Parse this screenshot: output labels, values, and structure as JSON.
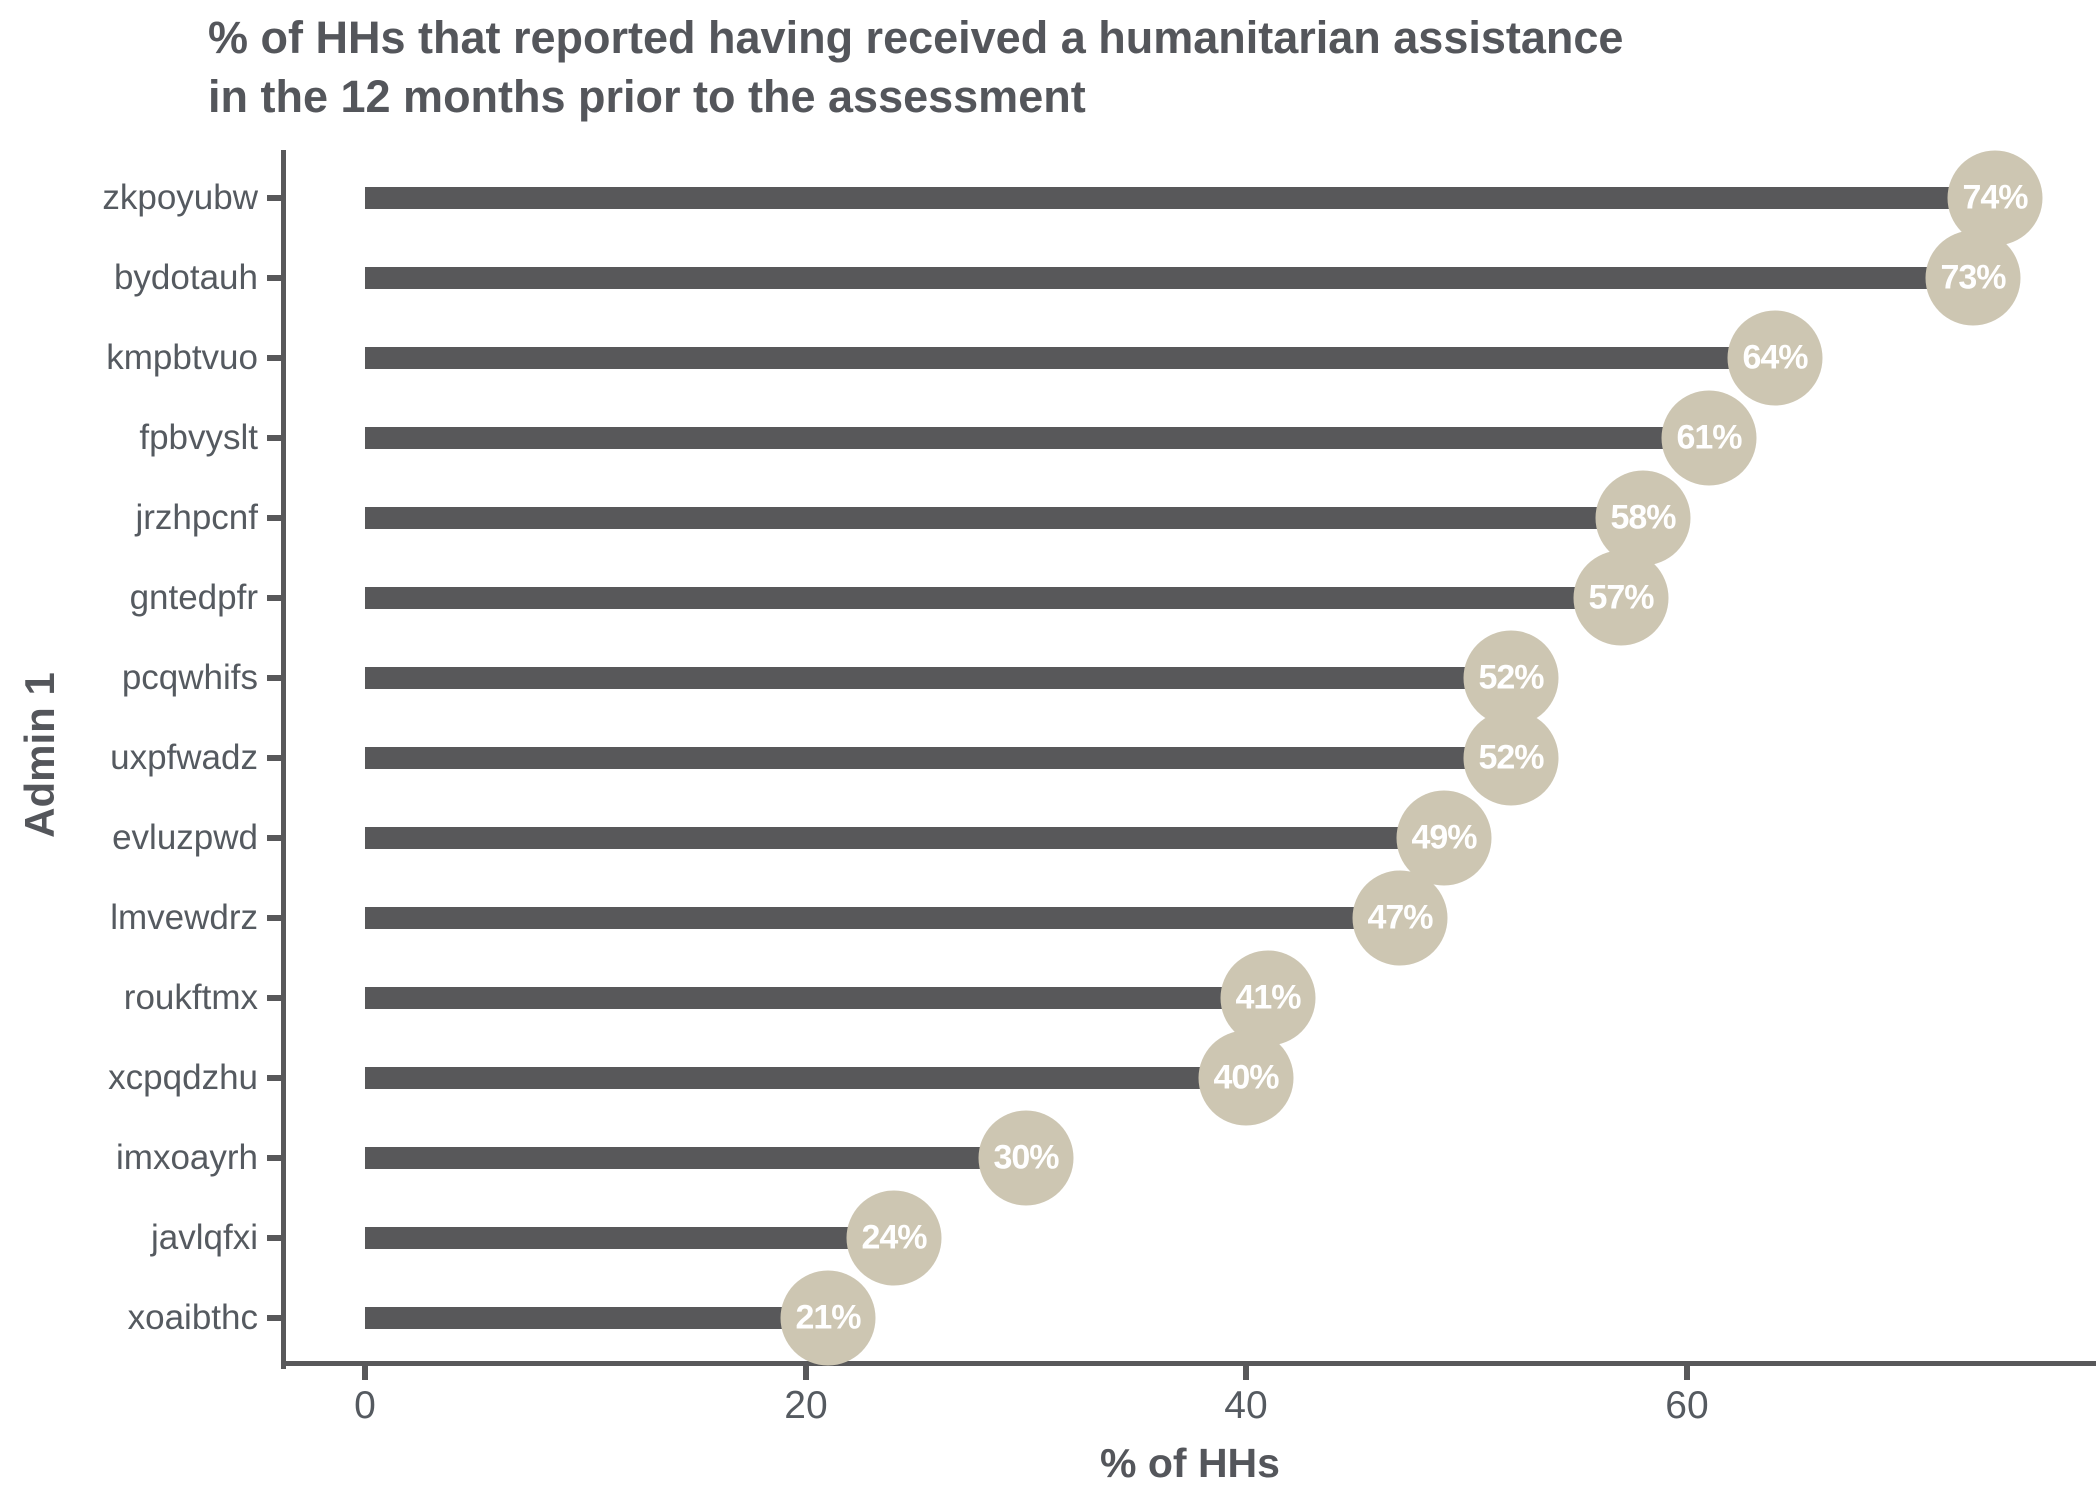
{
  "chart_data": {
    "type": "bar",
    "orientation": "horizontal",
    "title": "% of HHs that reported having received a humanitarian assistance in the 12 months prior to the assessment",
    "xlabel": "% of HHs",
    "ylabel": "Admin 1",
    "categories": [
      "zkpoyubw",
      "bydotauh",
      "kmpbtvuo",
      "fpbvyslt",
      "jrzhpcnf",
      "gntedpfr",
      "pcqwhifs",
      "uxpfwadz",
      "evluzpwd",
      "lmvewdrz",
      "roukftmx",
      "xcpqdzhu",
      "imxoayrh",
      "javlqfxi",
      "xoaibthc"
    ],
    "values": [
      74,
      73,
      64,
      61,
      58,
      57,
      52,
      52,
      49,
      47,
      41,
      40,
      30,
      24,
      21
    ],
    "value_labels": [
      "74%",
      "73%",
      "64%",
      "61%",
      "58%",
      "57%",
      "52%",
      "52%",
      "49%",
      "47%",
      "41%",
      "40%",
      "30%",
      "24%",
      "21%"
    ],
    "xticks": [
      0,
      20,
      40,
      60
    ],
    "xtick_labels": [
      "0",
      "20",
      "40",
      "60"
    ],
    "xlim": [
      0,
      78
    ],
    "grid": false,
    "legend": false
  },
  "colors": {
    "bar": "#58585A",
    "axis": "#58585A",
    "bubble_fill": "#CDC6B2",
    "bubble_text": "#FFFFFF",
    "tick_text": "#555A60",
    "title_text": "#54565B"
  }
}
